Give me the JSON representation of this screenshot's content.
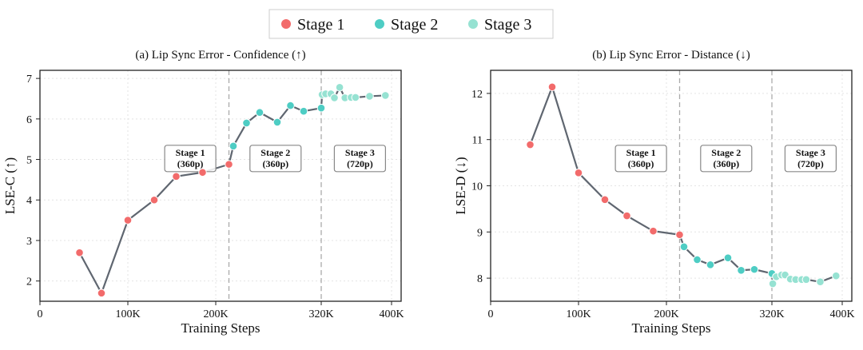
{
  "legend": [
    {
      "label": "Stage 1",
      "color": "#F26B6B"
    },
    {
      "label": "Stage 2",
      "color": "#4ECDC4"
    },
    {
      "label": "Stage 3",
      "color": "#96E2D2"
    }
  ],
  "line_color": "#5F6670",
  "chart_data": [
    {
      "type": "line",
      "title": "(a) Lip Sync Error - Confidence (↑)",
      "xlabel": "Training Steps",
      "ylabel": "LSE-C (↑)",
      "xlim": [
        0,
        410000
      ],
      "ylim": [
        1.5,
        7.2
      ],
      "xticks": [
        0,
        100000,
        200000,
        320000,
        400000
      ],
      "xtick_labels": [
        "0",
        "100K",
        "200K",
        "320K",
        "400K"
      ],
      "yticks": [
        2,
        3,
        4,
        5,
        6,
        7
      ],
      "ytick_labels": [
        "2",
        "3",
        "4",
        "5",
        "6",
        "7"
      ],
      "grid": true,
      "stage_boundaries": [
        215000,
        320000
      ],
      "annotations": [
        {
          "line1": "Stage 1",
          "line2": "(360p)"
        },
        {
          "line1": "Stage 2",
          "line2": "(360p)"
        },
        {
          "line1": "Stage 3",
          "line2": "(720p)"
        }
      ],
      "series": [
        {
          "name": "Stage 1",
          "x": [
            45000,
            70000,
            100000,
            130000,
            155000,
            185000,
            215000
          ],
          "y": [
            2.7,
            1.7,
            3.5,
            4.0,
            4.58,
            4.68,
            4.88
          ]
        },
        {
          "name": "Stage 2",
          "x": [
            220000,
            235000,
            250000,
            270000,
            285000,
            300000,
            320000
          ],
          "y": [
            5.33,
            5.9,
            6.16,
            5.92,
            6.33,
            6.19,
            6.27
          ]
        },
        {
          "name": "Stage 3",
          "x": [
            321000,
            325000,
            331000,
            335000,
            341000,
            347000,
            354000,
            359000,
            375000,
            393000
          ],
          "y": [
            6.6,
            6.62,
            6.62,
            6.52,
            6.78,
            6.52,
            6.53,
            6.53,
            6.56,
            6.58
          ]
        }
      ]
    },
    {
      "type": "line",
      "title": "(b) Lip Sync Error - Distance (↓)",
      "xlabel": "Training Steps",
      "ylabel": "LSE-D (↓)",
      "xlim": [
        0,
        410000
      ],
      "ylim": [
        7.5,
        12.5
      ],
      "xticks": [
        0,
        100000,
        200000,
        320000,
        400000
      ],
      "xtick_labels": [
        "0",
        "100K",
        "200K",
        "320K",
        "400K"
      ],
      "yticks": [
        8,
        9,
        10,
        11,
        12
      ],
      "ytick_labels": [
        "8",
        "9",
        "10",
        "11",
        "12"
      ],
      "grid": true,
      "stage_boundaries": [
        215000,
        320000
      ],
      "annotations": [
        {
          "line1": "Stage 1",
          "line2": "(360p)"
        },
        {
          "line1": "Stage 2",
          "line2": "(360p)"
        },
        {
          "line1": "Stage 3",
          "line2": "(720p)"
        }
      ],
      "series": [
        {
          "name": "Stage 1",
          "x": [
            45000,
            70000,
            100000,
            130000,
            155000,
            185000,
            215000
          ],
          "y": [
            10.89,
            12.14,
            10.28,
            9.7,
            9.35,
            9.02,
            8.94
          ]
        },
        {
          "name": "Stage 2",
          "x": [
            220000,
            235000,
            250000,
            270000,
            285000,
            300000,
            320000
          ],
          "y": [
            8.68,
            8.4,
            8.29,
            8.44,
            8.17,
            8.19,
            8.1
          ]
        },
        {
          "name": "Stage 3",
          "x": [
            321000,
            325000,
            331000,
            335000,
            341000,
            347000,
            354000,
            359000,
            375000,
            393000
          ],
          "y": [
            7.88,
            8.03,
            8.07,
            8.07,
            7.98,
            7.97,
            7.97,
            7.97,
            7.92,
            8.05
          ]
        }
      ]
    }
  ]
}
